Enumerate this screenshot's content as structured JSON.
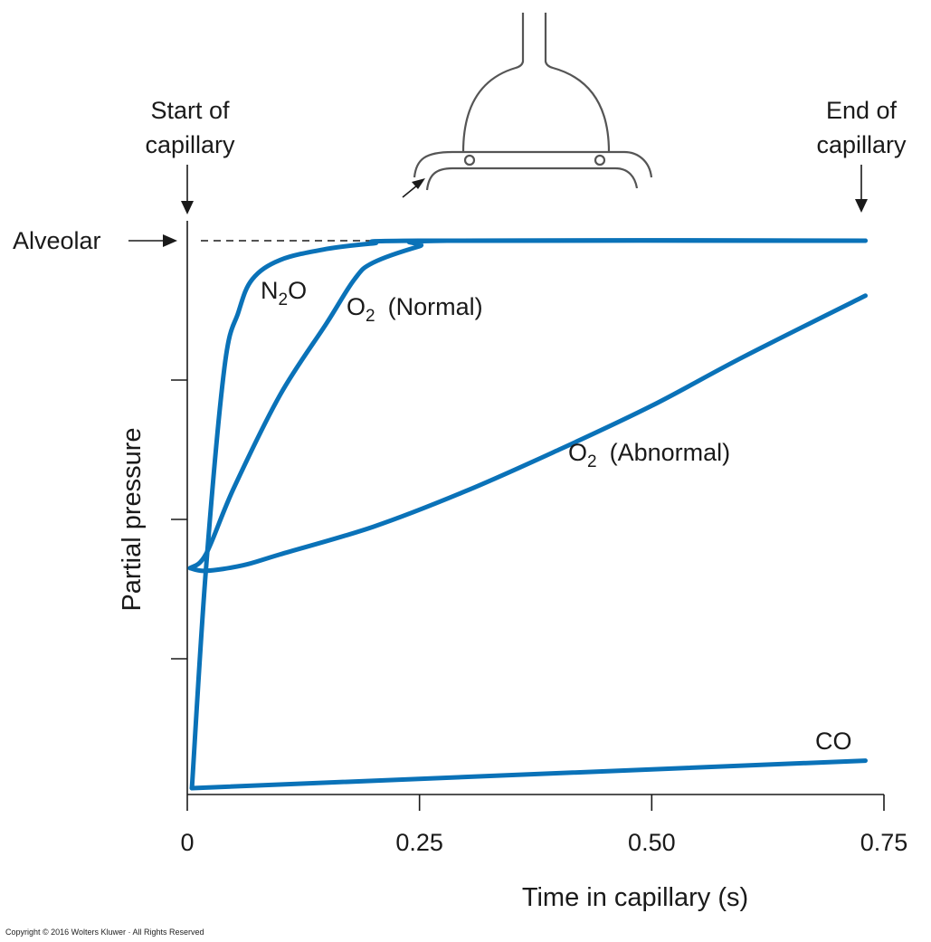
{
  "chart_data": {
    "type": "line",
    "xlabel": "Time in capillary (s)",
    "ylabel": "Partial pressure",
    "xlim": [
      0,
      0.75
    ],
    "x_ticks": [
      "0",
      "0.25",
      "0.50",
      "0.75"
    ],
    "ylim": [
      0,
      1
    ],
    "alveolar_level": 1,
    "annotations": {
      "alveolar": "Alveolar",
      "start": [
        "Start of",
        "capillary"
      ],
      "end": [
        "End of",
        "capillary"
      ]
    },
    "series": [
      {
        "name": "N2O",
        "label_main": "N",
        "label_sub": "2",
        "label_tail": "O",
        "color": "#0a72b8",
        "points": [
          [
            0.005,
            0.005
          ],
          [
            0.02,
            0.4
          ],
          [
            0.04,
            0.77
          ],
          [
            0.055,
            0.87
          ],
          [
            0.07,
            0.93
          ],
          [
            0.1,
            0.965
          ],
          [
            0.15,
            0.985
          ],
          [
            0.2,
            0.995
          ],
          [
            0.25,
            1.0
          ],
          [
            0.73,
            1.0
          ]
        ]
      },
      {
        "name": "O2 (Normal)",
        "label_main": "O",
        "label_sub": "2",
        "label_tail": "(Normal)",
        "color": "#0a72b8",
        "points": [
          [
            0.003,
            0.405
          ],
          [
            0.02,
            0.43
          ],
          [
            0.05,
            0.55
          ],
          [
            0.1,
            0.72
          ],
          [
            0.15,
            0.85
          ],
          [
            0.18,
            0.93
          ],
          [
            0.2,
            0.96
          ],
          [
            0.25,
            0.99
          ],
          [
            0.28,
            1.0
          ],
          [
            0.73,
            1.0
          ]
        ]
      },
      {
        "name": "O2 (Abnormal)",
        "label_main": "O",
        "label_sub": "2",
        "label_tail": "(Abnormal)",
        "color": "#0a72b8",
        "points": [
          [
            0.003,
            0.405
          ],
          [
            0.02,
            0.4
          ],
          [
            0.06,
            0.41
          ],
          [
            0.1,
            0.43
          ],
          [
            0.2,
            0.48
          ],
          [
            0.3,
            0.545
          ],
          [
            0.4,
            0.62
          ],
          [
            0.5,
            0.7
          ],
          [
            0.6,
            0.79
          ],
          [
            0.73,
            0.9
          ]
        ]
      },
      {
        "name": "CO",
        "label_main": "CO",
        "label_sub": "",
        "label_tail": "",
        "color": "#0a72b8",
        "points": [
          [
            0.005,
            0.005
          ],
          [
            0.73,
            0.055
          ]
        ]
      }
    ]
  },
  "copyright": "Copyright © 2016 Wolters Kluwer · All Rights Reserved",
  "icons": {
    "diagram": "alveolus-capillary-icon"
  }
}
